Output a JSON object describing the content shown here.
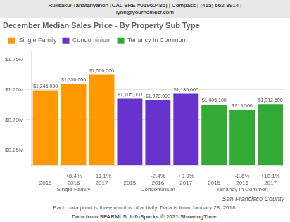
{
  "chart_data": {
    "type": "bar",
    "title": "December Median Sales Price - By Property Sub Type",
    "header": [
      "Ruksakul Tanatanyanon (CAL BRE #01960486)  |  Compass  |  (415) 662-8914  |",
      "lynn@yourhomesf.com"
    ],
    "categories": [
      "2015",
      "2016",
      "2017"
    ],
    "series": [
      {
        "name": "Single Family",
        "color": "#FF9900",
        "values": [
          1245000,
          1350000,
          1500000
        ],
        "value_labels": [
          "$1,245,000",
          "$1,350,000",
          "$1,500,000"
        ],
        "pct_changes": [
          null,
          "+8.4%",
          "+11.1%"
        ]
      },
      {
        "name": "Condominium",
        "color": "#6633CC",
        "values": [
          1105000,
          1078000,
          1185000
        ],
        "value_labels": [
          "$1,105,000",
          "$1,078,000",
          "$1,185,000"
        ],
        "pct_changes": [
          null,
          "-2.4%",
          "+9.9%"
        ]
      },
      {
        "name": "Tenancy In Common",
        "color": "#33AA33",
        "values": [
          1006100,
          919500,
          1012500
        ],
        "value_labels": [
          "$1,006,100",
          "$919,500",
          "$1,012,500"
        ],
        "pct_changes": [
          null,
          "-8.6%",
          "+10.1%"
        ]
      }
    ],
    "ylim": [
      0,
      1900000
    ],
    "yticks": [
      {
        "value": 250000,
        "label": "$0.25M"
      },
      {
        "value": 750000,
        "label": "$0.75M"
      },
      {
        "value": 1250000,
        "label": "$1.25M"
      },
      {
        "value": 1750000,
        "label": "$1.75M"
      }
    ],
    "grid": true,
    "legend": "top",
    "data_labels": true,
    "annotations": [
      "San Francisco County"
    ],
    "footnotes": [
      "Each data point is three months of activity. Data is from January 28, 2018.",
      "Data from SFARMLS. InfoSparks © 2021 ShowingTime."
    ]
  }
}
